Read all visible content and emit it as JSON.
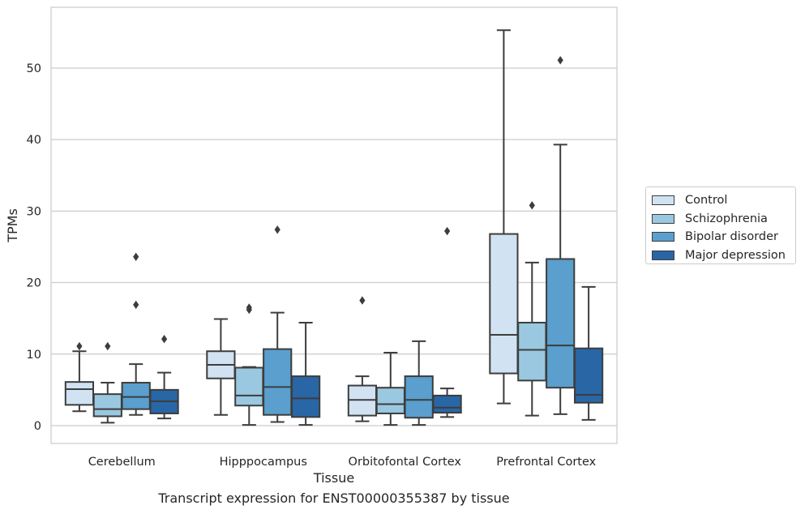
{
  "chart_data": {
    "type": "box",
    "title": "Transcript expression for ENST00000355387 by tissue",
    "xlabel": "Tissue",
    "ylabel": "TPMs",
    "ylim": [
      -2.5,
      58.5
    ],
    "yticks": [
      0,
      10,
      20,
      30,
      40,
      50
    ],
    "grid": "horizontal",
    "legend_position": "right",
    "categories": [
      "Cerebellum",
      "Hipppocampus",
      "Orbitofontal Cortex",
      "Prefrontal Cortex"
    ],
    "series": [
      {
        "name": "Control",
        "color": "#d1e2f2",
        "boxes": [
          {
            "whislo": 2.0,
            "q1": 2.9,
            "med": 5.1,
            "q3": 6.1,
            "whishi": 10.4,
            "fliers": [
              11.1
            ]
          },
          {
            "whislo": 1.5,
            "q1": 6.6,
            "med": 8.5,
            "q3": 10.4,
            "whishi": 14.9,
            "fliers": []
          },
          {
            "whislo": 0.6,
            "q1": 1.4,
            "med": 3.6,
            "q3": 5.6,
            "whishi": 6.9,
            "fliers": [
              17.5
            ]
          },
          {
            "whislo": 3.1,
            "q1": 7.3,
            "med": 12.7,
            "q3": 26.8,
            "whishi": 55.3,
            "fliers": []
          }
        ]
      },
      {
        "name": "Schizophrenia",
        "color": "#9ac8e0",
        "boxes": [
          {
            "whislo": 0.4,
            "q1": 1.3,
            "med": 2.3,
            "q3": 4.4,
            "whishi": 6.0,
            "fliers": [
              11.1
            ]
          },
          {
            "whislo": 0.1,
            "q1": 2.8,
            "med": 4.2,
            "q3": 8.1,
            "whishi": 8.2,
            "fliers": [
              16.2,
              16.5
            ]
          },
          {
            "whislo": 0.1,
            "q1": 1.7,
            "med": 3.0,
            "q3": 5.3,
            "whishi": 10.2,
            "fliers": []
          },
          {
            "whislo": 1.4,
            "q1": 6.3,
            "med": 10.6,
            "q3": 14.4,
            "whishi": 22.8,
            "fliers": [
              30.8
            ]
          }
        ]
      },
      {
        "name": "Bipolar disorder",
        "color": "#5a9fcd",
        "boxes": [
          {
            "whislo": 1.5,
            "q1": 2.3,
            "med": 4.0,
            "q3": 6.0,
            "whishi": 8.6,
            "fliers": [
              16.9,
              23.6
            ]
          },
          {
            "whislo": 0.5,
            "q1": 1.5,
            "med": 5.4,
            "q3": 10.7,
            "whishi": 15.8,
            "fliers": [
              27.4
            ]
          },
          {
            "whislo": 0.1,
            "q1": 1.1,
            "med": 3.6,
            "q3": 6.9,
            "whishi": 11.8,
            "fliers": []
          },
          {
            "whislo": 1.6,
            "q1": 5.3,
            "med": 11.2,
            "q3": 23.3,
            "whishi": 39.3,
            "fliers": [
              51.1
            ]
          }
        ]
      },
      {
        "name": "Major depression",
        "color": "#2866a6",
        "boxes": [
          {
            "whislo": 1.0,
            "q1": 1.7,
            "med": 3.4,
            "q3": 5.0,
            "whishi": 7.4,
            "fliers": [
              12.1
            ]
          },
          {
            "whislo": 0.1,
            "q1": 1.2,
            "med": 3.8,
            "q3": 6.9,
            "whishi": 14.4,
            "fliers": []
          },
          {
            "whislo": 1.2,
            "q1": 1.8,
            "med": 2.5,
            "q3": 4.2,
            "whishi": 5.2,
            "fliers": [
              27.2
            ]
          },
          {
            "whislo": 0.8,
            "q1": 3.2,
            "med": 4.3,
            "q3": 10.8,
            "whishi": 19.4,
            "fliers": []
          }
        ]
      }
    ]
  }
}
